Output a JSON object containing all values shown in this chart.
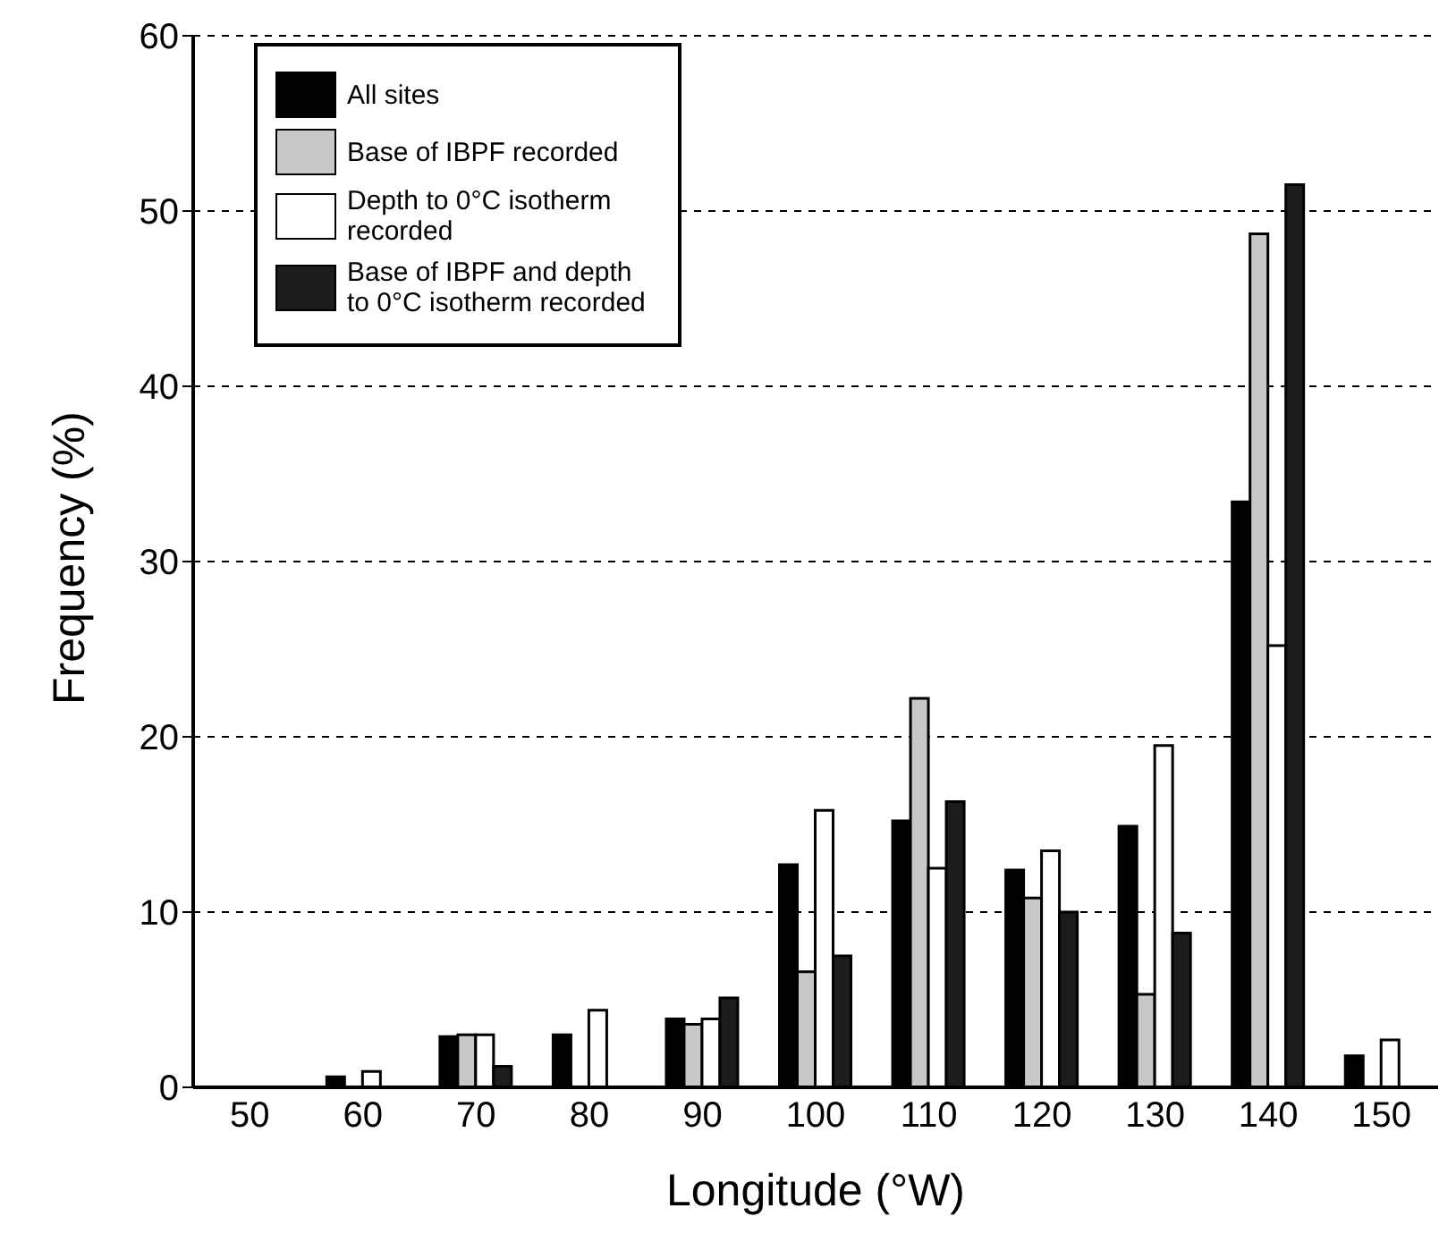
{
  "chart_data": {
    "type": "bar",
    "xlabel": "Longitude (°W)",
    "ylabel": "Frequency (%)",
    "categories": [
      "50",
      "60",
      "70",
      "80",
      "90",
      "100",
      "110",
      "120",
      "130",
      "140",
      "150"
    ],
    "series": [
      {
        "name": "All sites",
        "color": "#000000",
        "values": [
          0,
          0.6,
          2.9,
          3.0,
          3.9,
          12.7,
          15.2,
          12.4,
          14.9,
          33.4,
          1.8
        ]
      },
      {
        "name": "Base of IBPF recorded",
        "color": "#c8c8c8",
        "values": [
          0,
          0,
          3.0,
          0,
          3.6,
          6.6,
          22.2,
          10.8,
          5.3,
          48.7,
          0
        ]
      },
      {
        "name": "Depth to 0°C isotherm recorded",
        "color": "#ffffff",
        "values": [
          0,
          0.9,
          3.0,
          4.4,
          3.9,
          15.8,
          12.5,
          13.5,
          19.5,
          25.2,
          2.7
        ]
      },
      {
        "name": "Base  of IBPF and depth to 0°C isotherm recorded",
        "color": "#1c1c1c",
        "values": [
          0,
          0,
          1.2,
          0,
          5.1,
          7.5,
          16.3,
          10.0,
          8.8,
          51.5,
          0
        ]
      }
    ],
    "ylim": [
      0,
      60
    ],
    "yticks": [
      0,
      10,
      20,
      30,
      40,
      50,
      60
    ],
    "grid": "y",
    "legend": "top left"
  }
}
